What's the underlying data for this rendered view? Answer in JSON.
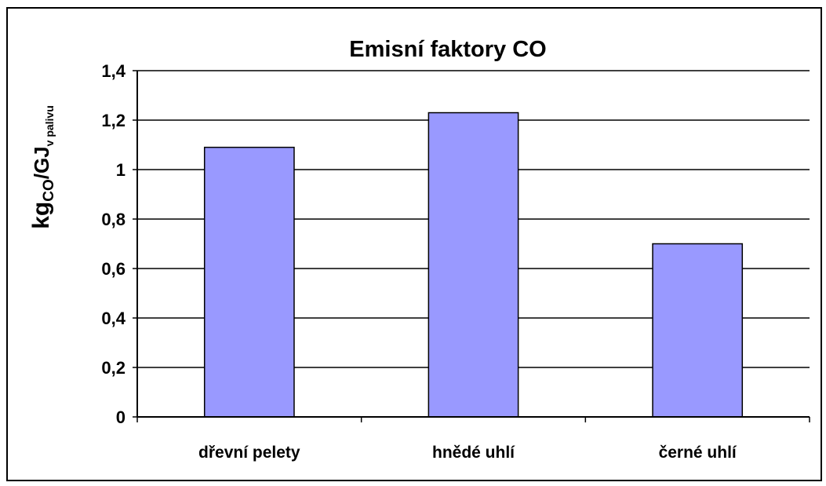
{
  "chart_data": {
    "type": "bar",
    "title": "Emisní faktory CO",
    "categories": [
      "dřevní pelety",
      "hnědé uhlí",
      "černé uhlí"
    ],
    "values": [
      1.09,
      1.23,
      0.7
    ],
    "ylabel": {
      "base": "kg",
      "sub1": "CO",
      "mid": "/GJ",
      "sub2": "v palivu"
    },
    "xlabel": "",
    "ylim": [
      0,
      1.4
    ],
    "yticks": [
      0,
      0.2,
      0.4,
      0.6,
      0.8,
      1,
      1.2,
      1.4
    ],
    "ytick_labels": [
      "0",
      "0,2",
      "0,4",
      "0,6",
      "0,8",
      "1",
      "1,2",
      "1,4"
    ],
    "grid": true,
    "legend": "none",
    "colors": {
      "bar_fill": "#9999ff",
      "bar_stroke": "#000000",
      "gridline": "#000000",
      "background": "#ffffff"
    }
  }
}
